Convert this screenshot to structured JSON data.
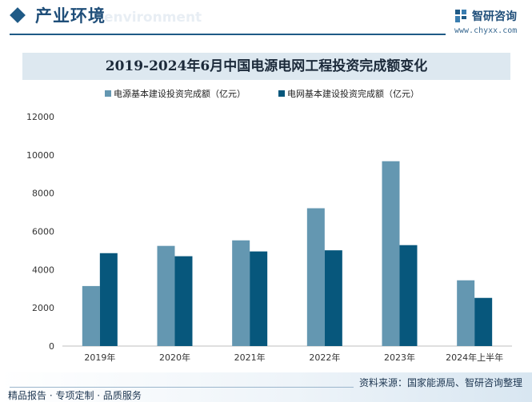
{
  "header": {
    "title": "产业环境",
    "subtitle": "environment",
    "logo_name": "智研咨询",
    "logo_url": "www.chyxx.com"
  },
  "chart_data": {
    "type": "bar",
    "title": "2019-2024年6月中国电源电网工程投资完成额变化",
    "categories": [
      "2019年",
      "2020年",
      "2021年",
      "2022年",
      "2023年",
      "2024年上半年"
    ],
    "series": [
      {
        "name": "电源基本建设投资完成额（亿元）",
        "color": "#6497b1",
        "values": [
          3140,
          5240,
          5530,
          7210,
          9670,
          3440
        ]
      },
      {
        "name": "电网基本建设投资完成额（亿元）",
        "color": "#07577c",
        "values": [
          4860,
          4700,
          4950,
          5010,
          5280,
          2520
        ]
      }
    ],
    "ylim": [
      0,
      12000
    ],
    "yticks": [
      0,
      2000,
      4000,
      6000,
      8000,
      10000,
      12000
    ],
    "legend": "top",
    "grid": false
  },
  "footer": {
    "source": "资料来源：国家能源局、智研咨询整理",
    "slogan": "精品报告 · 专项定制 · 品质服务"
  }
}
